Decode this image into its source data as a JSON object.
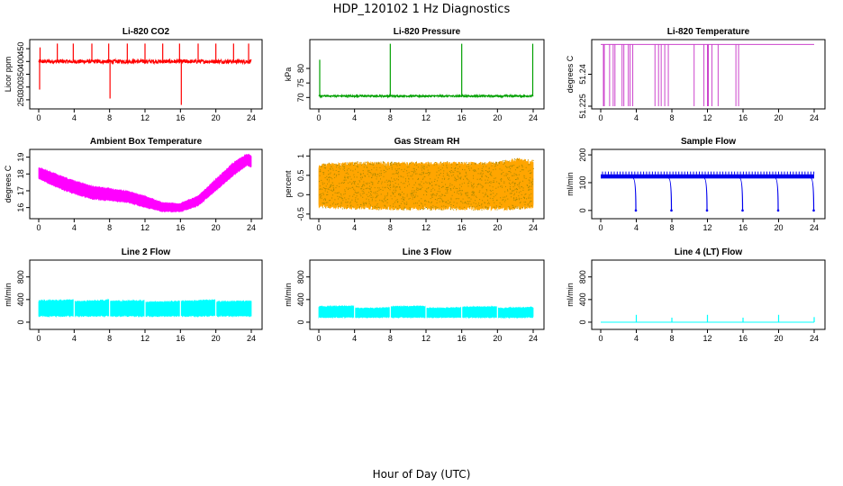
{
  "figure": {
    "title": "HDP_120102  1 Hz Diagnostics",
    "xlabel": "Hour of Day (UTC)"
  },
  "chart_data": [
    {
      "type": "line",
      "title": "Li-820 CO2",
      "ylabel": "Licor ppm",
      "color": "#ff0000",
      "xlim": [
        0,
        24
      ],
      "ylim": [
        225,
        475
      ],
      "xticks": [
        0,
        4,
        8,
        12,
        16,
        20,
        24
      ],
      "yticks": [
        250,
        300,
        350,
        400,
        450
      ],
      "baseline": 400,
      "noise": 8,
      "spikes": [
        {
          "x": 0.1,
          "y": 290
        },
        {
          "x": 0.15,
          "y": 455
        },
        {
          "x": 2.1,
          "y": 470
        },
        {
          "x": 3.9,
          "y": 470
        },
        {
          "x": 6.0,
          "y": 470
        },
        {
          "x": 7.9,
          "y": 470
        },
        {
          "x": 8.05,
          "y": 255
        },
        {
          "x": 10.0,
          "y": 470
        },
        {
          "x": 12.0,
          "y": 470
        },
        {
          "x": 14.0,
          "y": 470
        },
        {
          "x": 15.9,
          "y": 470
        },
        {
          "x": 16.1,
          "y": 230
        },
        {
          "x": 18.0,
          "y": 470
        },
        {
          "x": 20.0,
          "y": 470
        },
        {
          "x": 22.0,
          "y": 470
        },
        {
          "x": 23.7,
          "y": 470
        }
      ]
    },
    {
      "type": "line",
      "title": "Li-820 Pressure",
      "ylabel": "kPa",
      "color": "#00a000",
      "xlim": [
        0,
        24
      ],
      "ylim": [
        67,
        89
      ],
      "xticks": [
        0,
        4,
        8,
        12,
        16,
        20,
        24
      ],
      "yticks": [
        70,
        75,
        80
      ],
      "baseline": 70.5,
      "noise": 0.3,
      "spikes": [
        {
          "x": 0.1,
          "y": 83
        },
        {
          "x": 8.0,
          "y": 88.5
        },
        {
          "x": 16.0,
          "y": 88.5
        },
        {
          "x": 23.95,
          "y": 88.5
        }
      ]
    },
    {
      "type": "line",
      "title": "Li-820 Temperature",
      "ylabel": "degrees C",
      "color": "#cc44cc",
      "xlim": [
        0,
        24
      ],
      "ylim": [
        51.225,
        51.255
      ],
      "xticks": [
        0,
        4,
        8,
        12,
        16,
        20,
        24
      ],
      "yticks": [
        51.225,
        51.24
      ],
      "baseline": 51.254,
      "drop_value": 51.225,
      "drops": [
        0.3,
        0.4,
        1.0,
        1.4,
        1.6,
        2.4,
        2.6,
        3.1,
        3.3,
        3.6,
        6.1,
        6.5,
        6.8,
        7.2,
        7.6,
        10.5,
        11.6,
        12.0,
        12.1,
        12.5,
        13.2,
        15.2,
        15.5
      ]
    },
    {
      "type": "area",
      "title": "Ambient Box Temperature",
      "ylabel": "degrees C",
      "color": "#ff00ff",
      "xlim": [
        0,
        24
      ],
      "ylim": [
        15.5,
        19.3
      ],
      "xticks": [
        0,
        4,
        8,
        12,
        16,
        20,
        24
      ],
      "yticks": [
        16,
        17,
        18,
        19
      ],
      "x": [
        0,
        2,
        4,
        6,
        8,
        10,
        12,
        14,
        16,
        18,
        20,
        22,
        23.5,
        24
      ],
      "upper": [
        18.4,
        18.0,
        17.6,
        17.3,
        17.15,
        17.0,
        16.7,
        16.3,
        16.25,
        16.7,
        17.7,
        18.7,
        19.2,
        19.1
      ],
      "lower": [
        17.7,
        17.2,
        16.8,
        16.5,
        16.4,
        16.3,
        16.0,
        15.75,
        15.75,
        16.1,
        17.0,
        17.9,
        18.5,
        18.4
      ]
    },
    {
      "type": "area",
      "title": "Gas Stream RH",
      "ylabel": "percent",
      "color": "#ffa500",
      "color2": "#aa8800",
      "xlim": [
        0,
        24
      ],
      "ylim": [
        -0.55,
        1.1
      ],
      "xticks": [
        0,
        4,
        8,
        12,
        16,
        20,
        24
      ],
      "yticks": [
        -0.5,
        0.0,
        0.5,
        1.0
      ],
      "x": [
        0,
        4,
        8,
        12,
        16,
        20,
        22,
        24
      ],
      "upper": [
        0.8,
        0.85,
        0.85,
        0.85,
        0.85,
        0.85,
        0.95,
        0.9
      ],
      "lower": [
        -0.35,
        -0.38,
        -0.4,
        -0.4,
        -0.4,
        -0.4,
        -0.4,
        -0.35
      ]
    },
    {
      "type": "line",
      "title": "Sample Flow",
      "ylabel": "ml/min",
      "color": "#0000ee",
      "xlim": [
        0,
        24
      ],
      "ylim": [
        -20,
        210
      ],
      "xticks": [
        0,
        4,
        8,
        12,
        16,
        20,
        24
      ],
      "yticks": [
        0,
        100,
        200
      ],
      "band": [
        115,
        130
      ],
      "spike_up": 140,
      "drops": [
        {
          "x": 3.95,
          "y": 0
        },
        {
          "x": 7.95,
          "y": 0
        },
        {
          "x": 11.95,
          "y": 0
        },
        {
          "x": 15.95,
          "y": 0
        },
        {
          "x": 19.95,
          "y": 0
        },
        {
          "x": 23.95,
          "y": 0
        }
      ]
    },
    {
      "type": "area",
      "title": "Line 2 Flow",
      "ylabel": "ml/min",
      "color": "#00ffff",
      "xlim": [
        0,
        24
      ],
      "ylim": [
        -80,
        1050
      ],
      "xticks": [
        0,
        4,
        8,
        12,
        16,
        20,
        24
      ],
      "yticks": [
        0,
        400,
        800
      ],
      "x": [
        0,
        4,
        4.01,
        8,
        8.01,
        12,
        12.01,
        16,
        16.01,
        20,
        20.01,
        24
      ],
      "upper": [
        390,
        400,
        370,
        400,
        380,
        390,
        360,
        380,
        380,
        400,
        370,
        380
      ],
      "lower": [
        100,
        100,
        100,
        100,
        100,
        100,
        100,
        100,
        100,
        100,
        100,
        100
      ]
    },
    {
      "type": "area",
      "title": "Line 3 Flow",
      "ylabel": "ml/min",
      "color": "#00ffff",
      "xlim": [
        0,
        24
      ],
      "ylim": [
        -80,
        1050
      ],
      "xticks": [
        0,
        4,
        8,
        12,
        16,
        20,
        24
      ],
      "yticks": [
        0,
        400,
        800
      ],
      "x": [
        0,
        4,
        4.01,
        8,
        8.01,
        12,
        12.01,
        16,
        16.01,
        20,
        20.01,
        24
      ],
      "upper": [
        280,
        290,
        250,
        260,
        280,
        290,
        250,
        260,
        270,
        280,
        250,
        270
      ],
      "lower": [
        80,
        80,
        80,
        80,
        80,
        80,
        80,
        80,
        80,
        80,
        80,
        80
      ]
    },
    {
      "type": "line",
      "title": "Line 4 (LT) Flow",
      "ylabel": "ml/min",
      "color": "#00ffff",
      "xlim": [
        0,
        24
      ],
      "ylim": [
        -80,
        1050
      ],
      "xticks": [
        0,
        4,
        8,
        12,
        16,
        20,
        24
      ],
      "yticks": [
        0,
        400,
        800
      ],
      "baseline": 0,
      "spikes": [
        {
          "x": 4.0,
          "y": 130
        },
        {
          "x": 8.0,
          "y": 80
        },
        {
          "x": 12.0,
          "y": 130
        },
        {
          "x": 16.0,
          "y": 80
        },
        {
          "x": 20.0,
          "y": 130
        },
        {
          "x": 24.0,
          "y": 90
        }
      ]
    }
  ]
}
